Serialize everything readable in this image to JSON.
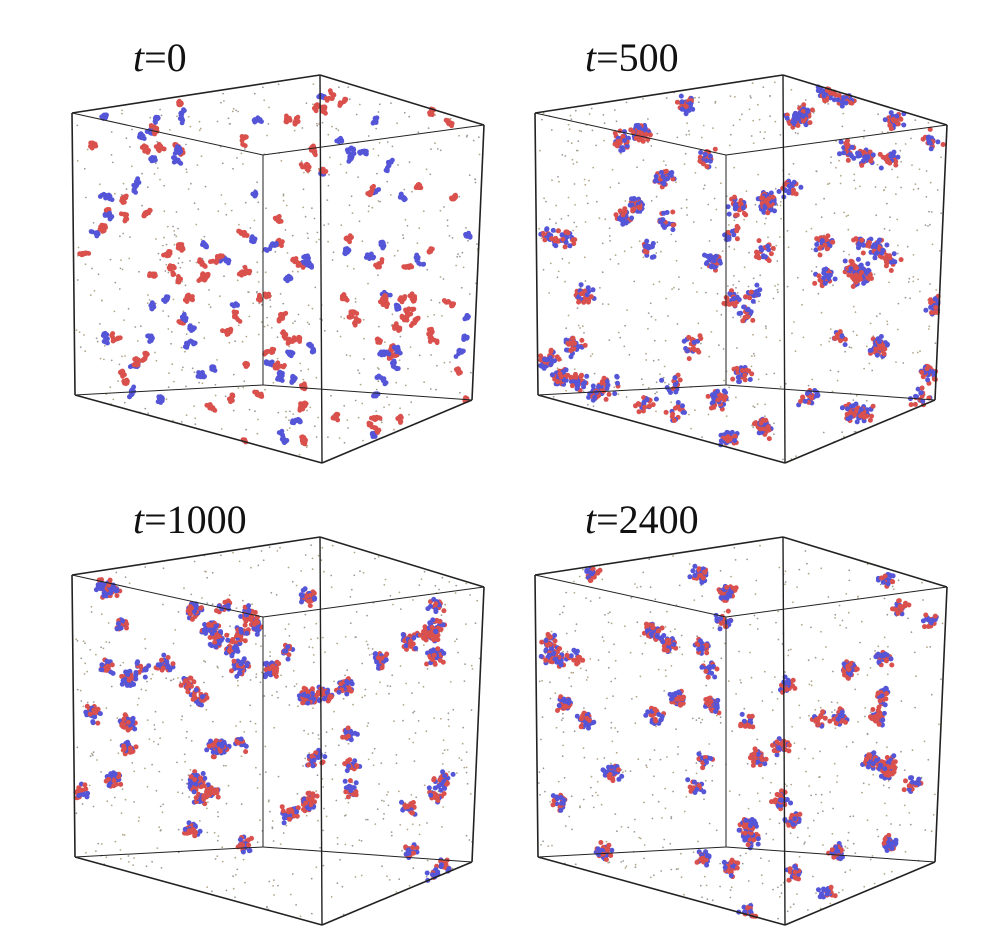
{
  "panels": [
    {
      "label": "t=0"
    },
    {
      "label": "t=500"
    },
    {
      "label": "t=1000"
    },
    {
      "label": "t=2400"
    }
  ]
}
